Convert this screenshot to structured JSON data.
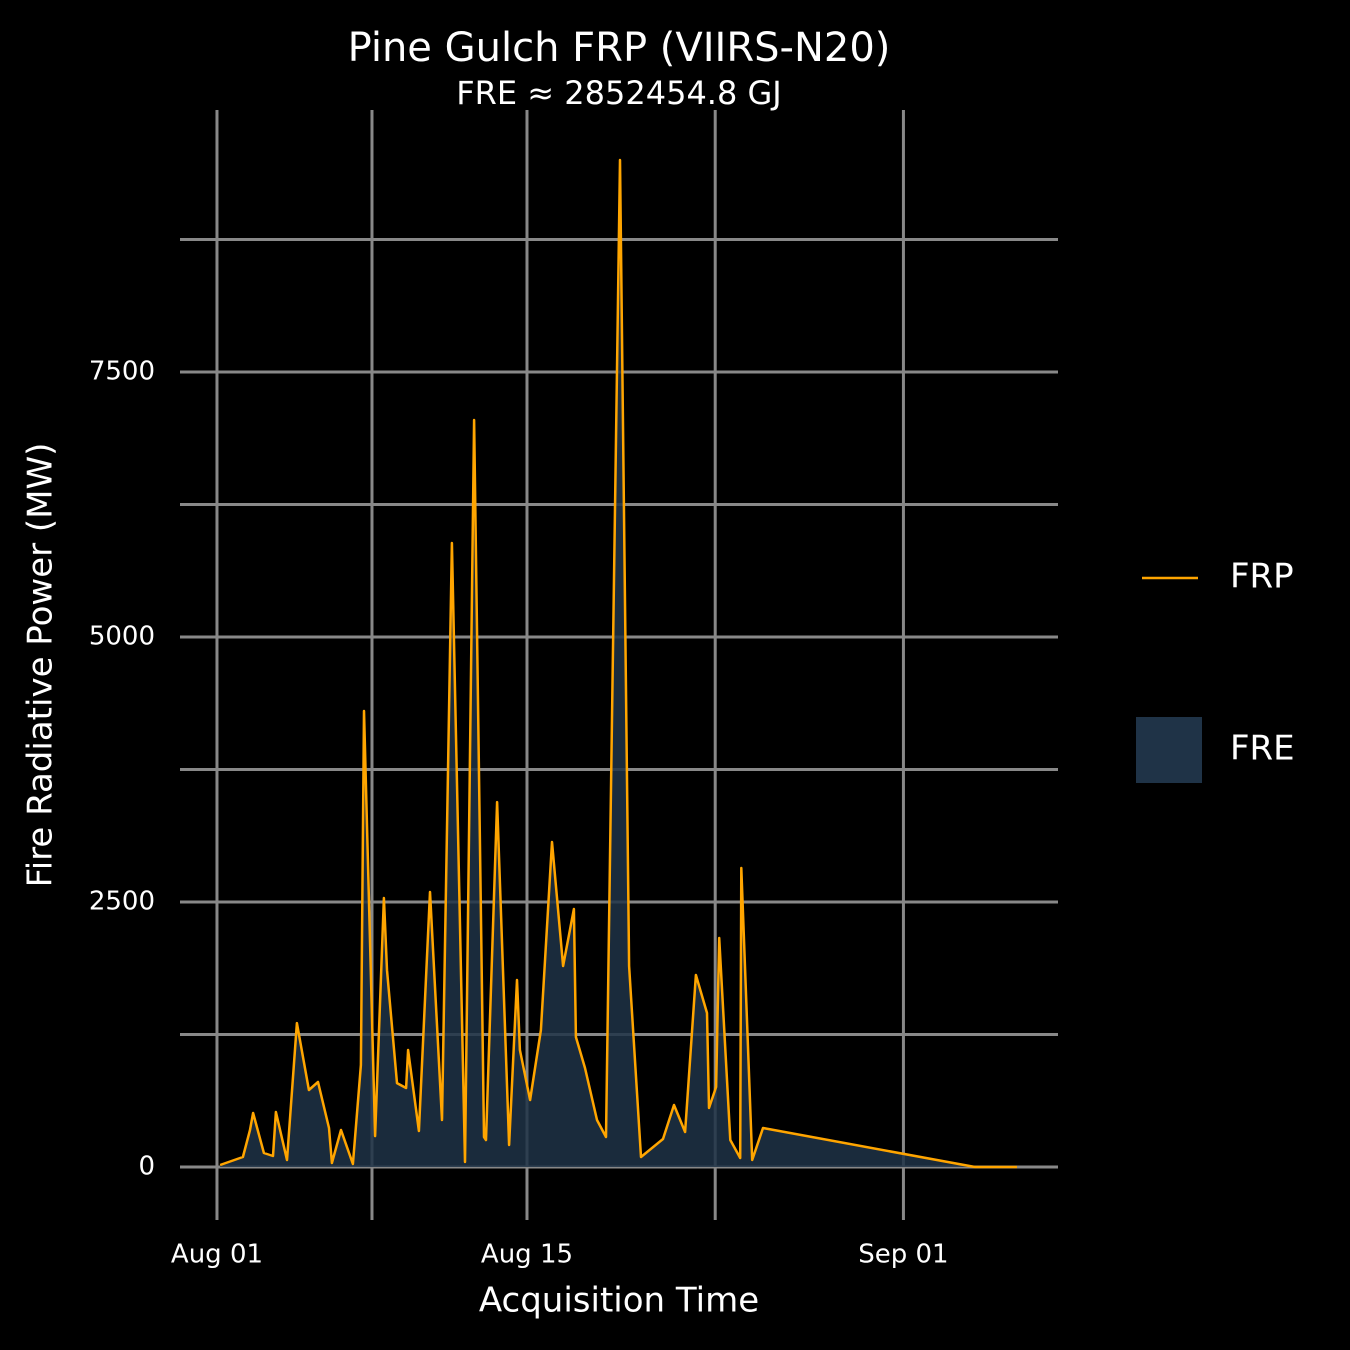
{
  "chart_data": {
    "type": "area",
    "title": "Pine Gulch FRP (VIIRS-N20)",
    "subtitle": "FRE ≈ 2852454.8 GJ",
    "x_label": "Acquisition Time",
    "y_label": "Fire Radiative Power (MW)",
    "x": [
      0.14,
      1.17,
      1.49,
      1.63,
      2.12,
      2.53,
      2.66,
      3.16,
      3.61,
      4.15,
      4.56,
      5.06,
      5.19,
      5.6,
      6.14,
      6.5,
      6.64,
      7.14,
      7.54,
      7.68,
      8.13,
      8.54,
      8.63,
      9.12,
      9.62,
      10.16,
      10.61,
      11.2,
      11.61,
      12.06,
      12.15,
      12.65,
      13.19,
      13.55,
      13.68,
      14.14,
      14.63,
      15.13,
      15.63,
      16.12,
      16.21,
      16.62,
      17.16,
      17.57,
      18.2,
      18.61,
      19.15,
      20.14,
      20.64,
      21.14,
      21.63,
      22.13,
      22.22,
      22.54,
      22.68,
      23.18,
      23.63,
      23.68,
      24.17,
      24.66,
      34.23,
      36.13
    ],
    "series": [
      {
        "name": "FRP",
        "color": "#FFA500",
        "values": [
          19,
          94,
          349,
          509,
          132,
          104,
          519,
          66,
          1358,
          726,
          802,
          368,
          38,
          349,
          28,
          962,
          4302,
          292,
          2538,
          1858,
          792,
          745,
          1104,
          340,
          2594,
          443,
          5887,
          47,
          7047,
          283,
          255,
          3443,
          208,
          1764,
          1104,
          632,
          1292,
          3066,
          1896,
          2434,
          1226,
          934,
          443,
          283,
          9500,
          1896,
          94,
          264,
          585,
          330,
          1811,
          1453,
          557,
          755,
          2160,
          255,
          85,
          2821,
          66,
          368,
          0,
          0
        ]
      }
    ],
    "area": {
      "name": "FRE",
      "color": "#1f3347"
    },
    "xlim": [
      -1.67,
      37.98
    ],
    "ylim": [
      -500,
      9972
    ],
    "xticks": [
      {
        "value": 0,
        "label": "Aug 01"
      },
      {
        "value": 14,
        "label": "Aug 15"
      },
      {
        "value": 31,
        "label": "Sep 01"
      }
    ],
    "x_minor_grid": [
      7,
      22.5
    ],
    "yticks": [
      0,
      2500,
      5000,
      7500
    ],
    "y_minor_grid": [
      1250,
      3750,
      6250,
      8750
    ],
    "grid": true,
    "grid_color": "#888888",
    "legend": "right"
  }
}
